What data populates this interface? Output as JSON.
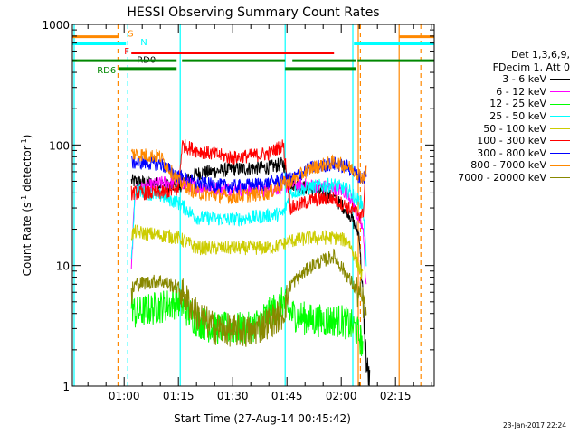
{
  "chart_data": {
    "type": "line",
    "title": "HESSI Observing Summary Count Rates",
    "xlabel": "Start Time (27-Aug-14 00:45:42)",
    "ylabel": "Count Rate (s-1 detector-1)",
    "ylabel_main": "Count Rate (s",
    "ylabel_sup1": "-1",
    "ylabel_mid": " detector",
    "ylabel_sup2": "-1",
    "ylabel_end": ")",
    "y_scale": "log",
    "ylim": [
      1,
      1000
    ],
    "xlim_minutes": [
      45.7,
      145.7
    ],
    "x_ticks": [
      {
        "minute": 60,
        "label": "01:00"
      },
      {
        "minute": 75,
        "label": "01:15"
      },
      {
        "minute": 90,
        "label": "01:30"
      },
      {
        "minute": 105,
        "label": "01:45"
      },
      {
        "minute": 120,
        "label": "02:00"
      },
      {
        "minute": 135,
        "label": "02:15"
      }
    ],
    "y_ticks": [
      {
        "value": 1,
        "label": "1"
      },
      {
        "value": 10,
        "label": "10"
      },
      {
        "value": 100,
        "label": "100"
      },
      {
        "value": 1000,
        "label": "1000"
      }
    ],
    "legend_header": [
      "Det 1,3,6,9,",
      "FDecim 1, Att 0"
    ],
    "series": [
      {
        "name": "3 - 6 keV",
        "color": "#000000",
        "points": [
          [
            62,
            50
          ],
          [
            68,
            48
          ],
          [
            75,
            45
          ],
          [
            80,
            58
          ],
          [
            90,
            63
          ],
          [
            100,
            65
          ],
          [
            104,
            70
          ],
          [
            106,
            48
          ],
          [
            115,
            40
          ],
          [
            118,
            36
          ],
          [
            122,
            28
          ],
          [
            125,
            18
          ],
          [
            126,
            5
          ],
          [
            127,
            1.5
          ],
          [
            128,
            1
          ]
        ]
      },
      {
        "name": "6 - 12 keV",
        "color": "#ff00ff",
        "points": [
          [
            62,
            9
          ],
          [
            63,
            42
          ],
          [
            70,
            48
          ],
          [
            75,
            50
          ],
          [
            80,
            45
          ],
          [
            90,
            43
          ],
          [
            100,
            42
          ],
          [
            104,
            45
          ],
          [
            106,
            47
          ],
          [
            112,
            46
          ],
          [
            118,
            44
          ],
          [
            122,
            40
          ],
          [
            126,
            20
          ],
          [
            127,
            6
          ]
        ]
      },
      {
        "name": "12 - 25 keV",
        "color": "#00ff00",
        "points": [
          [
            62,
            5
          ],
          [
            63,
            4
          ],
          [
            75,
            5
          ],
          [
            80,
            3.5
          ],
          [
            85,
            3
          ],
          [
            95,
            3
          ],
          [
            104,
            5
          ],
          [
            106,
            4
          ],
          [
            112,
            3.5
          ],
          [
            120,
            3.5
          ],
          [
            124,
            3
          ],
          [
            126,
            2.2
          ]
        ]
      },
      {
        "name": "25 - 50 keV",
        "color": "#00ffff",
        "points": [
          [
            62,
            10
          ],
          [
            63,
            42
          ],
          [
            70,
            38
          ],
          [
            75,
            33
          ],
          [
            80,
            25
          ],
          [
            90,
            24
          ],
          [
            100,
            26
          ],
          [
            104,
            27
          ],
          [
            106,
            40
          ],
          [
            112,
            45
          ],
          [
            118,
            47
          ],
          [
            122,
            42
          ],
          [
            126,
            32
          ],
          [
            127,
            10
          ]
        ]
      },
      {
        "name": "50 - 100 keV",
        "color": "#cccc00",
        "points": [
          [
            62,
            18
          ],
          [
            63,
            19
          ],
          [
            75,
            17
          ],
          [
            80,
            14
          ],
          [
            90,
            14
          ],
          [
            100,
            14
          ],
          [
            104,
            15
          ],
          [
            106,
            16
          ],
          [
            112,
            17
          ],
          [
            118,
            17
          ],
          [
            122,
            16
          ],
          [
            126,
            8
          ]
        ]
      },
      {
        "name": "100 - 300 keV",
        "color": "#ff0000",
        "points": [
          [
            62,
            40
          ],
          [
            70,
            40
          ],
          [
            75,
            42
          ],
          [
            76,
            100
          ],
          [
            80,
            90
          ],
          [
            90,
            78
          ],
          [
            100,
            85
          ],
          [
            104,
            100
          ],
          [
            106,
            30
          ],
          [
            112,
            35
          ],
          [
            118,
            36
          ],
          [
            122,
            30
          ],
          [
            126,
            26
          ],
          [
            127,
            80
          ]
        ]
      },
      {
        "name": "300 - 800 keV",
        "color": "#0000ff",
        "points": [
          [
            62,
            72
          ],
          [
            70,
            70
          ],
          [
            75,
            55
          ],
          [
            80,
            48
          ],
          [
            90,
            45
          ],
          [
            100,
            48
          ],
          [
            104,
            52
          ],
          [
            106,
            52
          ],
          [
            112,
            65
          ],
          [
            118,
            70
          ],
          [
            122,
            65
          ],
          [
            126,
            52
          ],
          [
            127,
            60
          ]
        ]
      },
      {
        "name": "800 - 7000 keV",
        "color": "#ff8800",
        "points": [
          [
            62,
            85
          ],
          [
            70,
            80
          ],
          [
            75,
            50
          ],
          [
            80,
            40
          ],
          [
            90,
            37
          ],
          [
            100,
            40
          ],
          [
            104,
            48
          ],
          [
            106,
            50
          ],
          [
            112,
            65
          ],
          [
            118,
            72
          ],
          [
            122,
            66
          ],
          [
            126,
            54
          ],
          [
            127,
            60
          ]
        ]
      },
      {
        "name": "7000 - 20000 keV",
        "color": "#888800",
        "points": [
          [
            62,
            5.5
          ],
          [
            63,
            7
          ],
          [
            70,
            7.5
          ],
          [
            75,
            6.5
          ],
          [
            80,
            4
          ],
          [
            85,
            3
          ],
          [
            95,
            2.8
          ],
          [
            104,
            4
          ],
          [
            106,
            7
          ],
          [
            112,
            10
          ],
          [
            118,
            12
          ],
          [
            122,
            8
          ],
          [
            126,
            5
          ],
          [
            127,
            4
          ]
        ]
      }
    ],
    "flags": [
      {
        "label": "S",
        "color": "#ff8800",
        "label_minute": 61,
        "label_value": 850,
        "value": 790,
        "segments": [
          [
            45.7,
            58.5
          ],
          [
            136,
            145.7
          ]
        ]
      },
      {
        "label": "N",
        "color": "#00ffff",
        "label_minute": 64.5,
        "label_value": 720,
        "value": 690,
        "segments": [
          [
            45.7,
            60.5
          ],
          [
            123.5,
            145.7
          ]
        ]
      },
      {
        "label": "F",
        "color": "#ff0000",
        "label_minute": 60,
        "label_value": 605,
        "value": 580,
        "segments": [
          [
            62,
            118
          ]
        ]
      },
      {
        "label": "RD0",
        "color": "#000000",
        "label_minute": 63.5,
        "label_value": 515,
        "value": 500,
        "segments": []
      },
      {
        "label": "RD6",
        "color": "#008800",
        "label_minute": 52.5,
        "label_value": 420,
        "value": 500,
        "segments": [
          [
            45.7,
            61
          ],
          [
            61,
            74.5
          ],
          [
            76,
            104.5
          ],
          [
            106.5,
            124
          ],
          [
            124.5,
            145.7
          ]
        ]
      }
    ],
    "rd6_low_segments": [
      [
        58.5,
        74.5
      ],
      [
        104.5,
        124
      ]
    ],
    "v_lines": [
      {
        "minute": 58.3,
        "color": "#ff8800",
        "dashed": true
      },
      {
        "minute": 61,
        "color": "#00ffff",
        "dashed": true
      },
      {
        "minute": 75.5,
        "color": "#00ffff",
        "dashed": false
      },
      {
        "minute": 104.5,
        "color": "#00ffff",
        "dashed": false
      },
      {
        "minute": 123.2,
        "color": "#00ffff",
        "dashed": false
      },
      {
        "minute": 124.7,
        "color": "#ff8800",
        "dashed": false
      },
      {
        "minute": 125.3,
        "color": "#ff8800",
        "dashed": true
      },
      {
        "minute": 136,
        "color": "#ff8800",
        "dashed": false
      },
      {
        "minute": 142,
        "color": "#ff8800",
        "dashed": true
      },
      {
        "minute": 46.2,
        "color": "#00ffff",
        "dashed": false
      }
    ],
    "grid": false,
    "legend_position": "right"
  },
  "timestamp": "23-Jan-2017 22:24"
}
